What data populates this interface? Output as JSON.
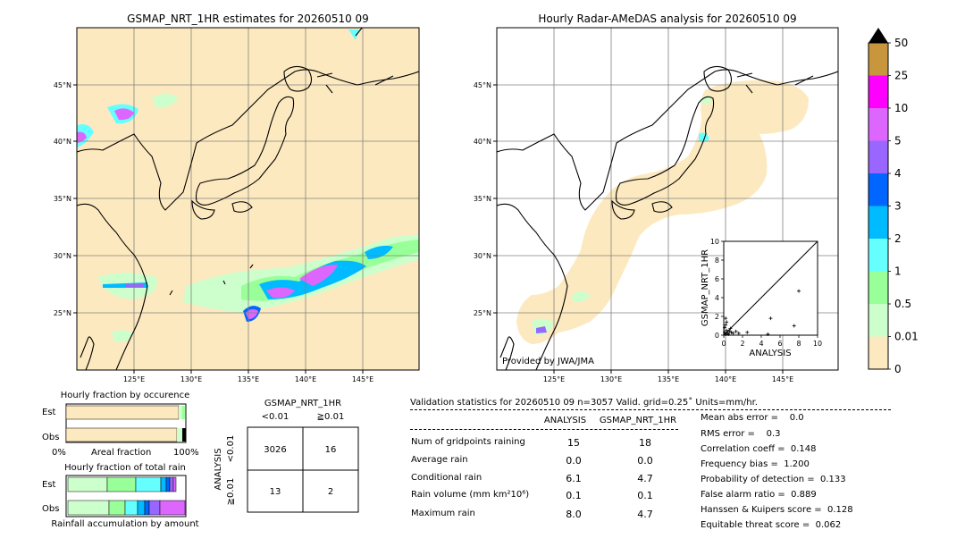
{
  "left_map": {
    "title": "GSMAP_NRT_1HR estimates for 20260510 09",
    "lat_labels": [
      "45°N",
      "40°N",
      "35°N",
      "30°N",
      "25°N"
    ],
    "lon_labels": [
      "125°E",
      "130°E",
      "135°E",
      "140°E",
      "145°E"
    ]
  },
  "right_map": {
    "title": "Hourly Radar-AMeDAS analysis for 20260510 09",
    "lat_labels": [
      "45°N",
      "40°N",
      "35°N",
      "30°N",
      "25°N"
    ],
    "lon_labels": [
      "125°E",
      "130°E",
      "135°E",
      "140°E",
      "145°E"
    ],
    "credit": "Provided by JWA/JMA"
  },
  "colorbar": {
    "labels": [
      "50",
      "25",
      "10",
      "5",
      "4",
      "3",
      "2",
      "1",
      "0.5",
      "0.01",
      "0"
    ],
    "colors": [
      "#c8963c",
      "#ff00ff",
      "#dd66ff",
      "#9966ff",
      "#0066ff",
      "#00bbff",
      "#66ffff",
      "#99ff99",
      "#ccffcc",
      "#fde9bf"
    ]
  },
  "chart_data": [
    {
      "type": "scatter",
      "xlabel": "ANALYSIS",
      "ylabel": "GSMAP_NRT_1HR",
      "xlim": [
        0,
        10
      ],
      "ylim": [
        0,
        10
      ],
      "x_ticks": [
        "0",
        "2",
        "4",
        "6",
        "8",
        "10"
      ],
      "y_ticks": [
        "0",
        "2",
        "4",
        "6",
        "8",
        "10"
      ],
      "points": [
        {
          "x": 0.1,
          "y": 0.3
        },
        {
          "x": 0.2,
          "y": 0.1
        },
        {
          "x": 0.3,
          "y": 0.5
        },
        {
          "x": 0.4,
          "y": 0.2
        },
        {
          "x": 0.1,
          "y": 0.8
        },
        {
          "x": 0.6,
          "y": 0.4
        },
        {
          "x": 0.5,
          "y": 0.1
        },
        {
          "x": 0.2,
          "y": 1.1
        },
        {
          "x": 0.8,
          "y": 0.3
        },
        {
          "x": 0.3,
          "y": 1.4
        },
        {
          "x": 1.0,
          "y": 0.2
        },
        {
          "x": 0.7,
          "y": 0.7
        },
        {
          "x": 1.3,
          "y": 0.4
        },
        {
          "x": 0.2,
          "y": 1.8
        },
        {
          "x": 1.6,
          "y": 0.2
        },
        {
          "x": 2.5,
          "y": 0.3
        },
        {
          "x": 5.0,
          "y": 1.8
        },
        {
          "x": 7.5,
          "y": 1.0
        },
        {
          "x": 4.7,
          "y": 0.1
        },
        {
          "x": 8.0,
          "y": 4.7
        }
      ]
    },
    {
      "type": "bar",
      "title": "Hourly fraction by occurence",
      "categories": [
        "Est",
        "Obs"
      ],
      "xlabel": "Areal fraction",
      "x_ticks": [
        "0%",
        "100%"
      ]
    },
    {
      "type": "bar",
      "title": "Hourly fraction of total rain",
      "categories": [
        "Est",
        "Obs"
      ],
      "xlabel": "Rainfall accumulation by amount"
    }
  ],
  "contingency": {
    "title": "GSMAP_NRT_1HR",
    "col_labels": [
      "<0.01",
      "≧0.01"
    ],
    "row_axis": "ANALYSIS",
    "row_labels": [
      "<0.01",
      "≧0.01"
    ],
    "cells": [
      [
        "3026",
        "16"
      ],
      [
        "13",
        "2"
      ]
    ]
  },
  "validation": {
    "header": "Validation statistics for 20260510 09  n=3057 Valid. grid=0.25˚ Units=mm/hr.",
    "col_analysis": "ANALYSIS",
    "col_gsmap": "GSMAP_NRT_1HR",
    "rows": [
      {
        "label": "Num of gridpoints raining",
        "analysis": "15",
        "gsmap": "18"
      },
      {
        "label": "Average rain",
        "analysis": "0.0",
        "gsmap": "0.0"
      },
      {
        "label": "Conditional rain",
        "analysis": "6.1",
        "gsmap": "4.7"
      },
      {
        "label": "Rain volume (mm km²10⁶)",
        "analysis": "0.1",
        "gsmap": "0.1"
      },
      {
        "label": "Maximum rain",
        "analysis": "8.0",
        "gsmap": "4.7"
      }
    ],
    "scores": [
      "Mean abs error =    0.0",
      "RMS error =    0.3",
      "Correlation coeff =  0.148",
      "Frequency bias =  1.200",
      "Probability of detection =  0.133",
      "False alarm ratio =  0.889",
      "Hanssen & Kuipers score =  0.128",
      "Equitable threat score =  0.062"
    ]
  }
}
